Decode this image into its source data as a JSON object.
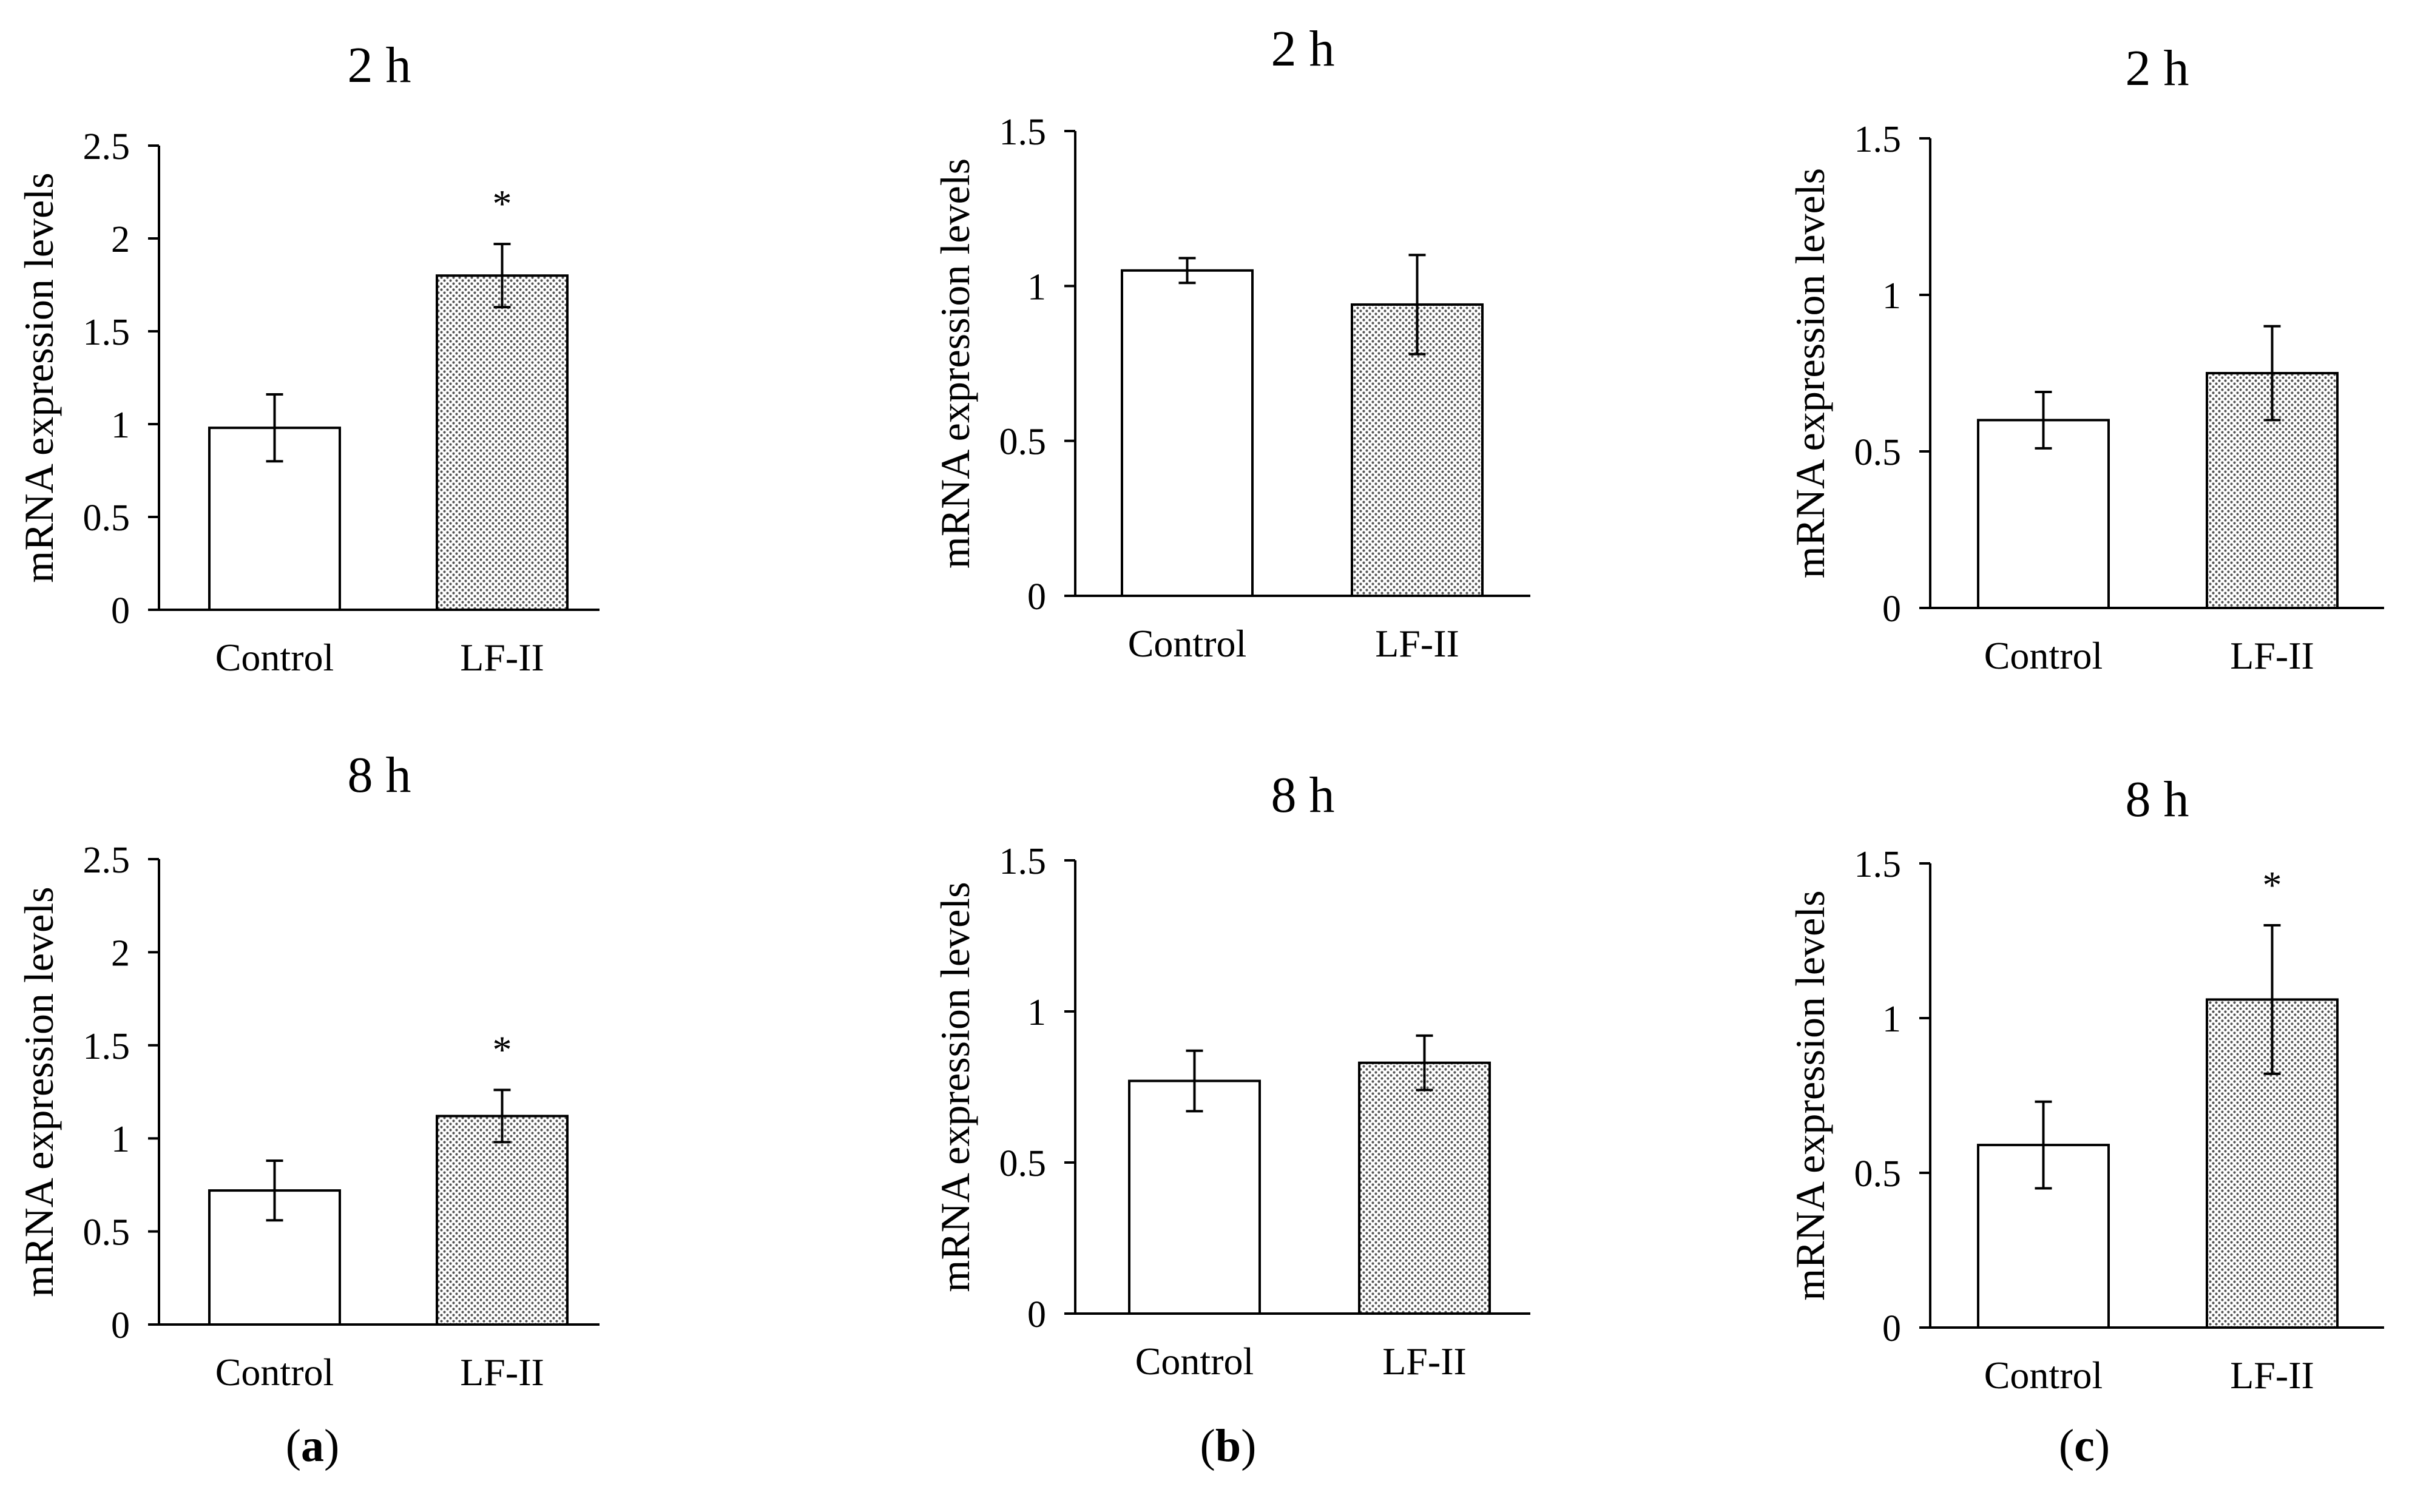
{
  "figure": {
    "panel_labels": [
      {
        "open": "(",
        "letter": "a",
        "close": ")"
      },
      {
        "open": "(",
        "letter": "b",
        "close": ")"
      },
      {
        "open": "(",
        "letter": "c",
        "close": ")"
      }
    ],
    "colors": {
      "axis": "#000000",
      "bar_fill_control": "#ffffff",
      "bar_fill_treatment_dot": "#555555",
      "bar_fill_treatment_bg": "#ffffff"
    }
  },
  "chart_data": [
    {
      "type": "bar",
      "panel": "a",
      "title": "2 h",
      "ylabel": "mRNA expression levels",
      "xlabel": "",
      "categories": [
        "Control",
        "LF-II"
      ],
      "values": [
        0.98,
        1.8
      ],
      "errors": [
        0.18,
        0.17
      ],
      "significance": [
        "",
        "*"
      ],
      "ylim": [
        0,
        2.5
      ],
      "yticks": [
        0,
        0.5,
        1,
        1.5,
        2,
        2.5
      ],
      "ytick_labels": [
        "0",
        "0.5",
        "1",
        "1.5",
        "2",
        "2.5"
      ],
      "grid": false
    },
    {
      "type": "bar",
      "panel": "b",
      "title": "2 h",
      "ylabel": "mRNA expression levels",
      "xlabel": "",
      "categories": [
        "Control",
        "LF-II"
      ],
      "values": [
        1.05,
        0.94
      ],
      "errors": [
        0.04,
        0.16
      ],
      "significance": [
        "",
        ""
      ],
      "ylim": [
        0,
        1.5
      ],
      "yticks": [
        0,
        0.5,
        1,
        1.5
      ],
      "ytick_labels": [
        "0",
        "0.5",
        "1",
        "1.5"
      ],
      "grid": false
    },
    {
      "type": "bar",
      "panel": "c",
      "title": "2 h",
      "ylabel": "mRNA expression levels",
      "xlabel": "",
      "categories": [
        "Control",
        "LF-II"
      ],
      "values": [
        0.6,
        0.75
      ],
      "errors": [
        0.09,
        0.15
      ],
      "significance": [
        "",
        ""
      ],
      "ylim": [
        0,
        1.5
      ],
      "yticks": [
        0,
        0.5,
        1,
        1.5
      ],
      "ytick_labels": [
        "0",
        "0.5",
        "1",
        "1.5"
      ],
      "grid": false
    },
    {
      "type": "bar",
      "panel": "a",
      "title": "8 h",
      "ylabel": "mRNA expression levels",
      "xlabel": "",
      "categories": [
        "Control",
        "LF-II"
      ],
      "values": [
        0.72,
        1.12
      ],
      "errors": [
        0.16,
        0.14
      ],
      "significance": [
        "",
        "*"
      ],
      "ylim": [
        0,
        2.5
      ],
      "yticks": [
        0,
        0.5,
        1,
        1.5,
        2,
        2.5
      ],
      "ytick_labels": [
        "0",
        "0.5",
        "1",
        "1.5",
        "2",
        "2.5"
      ],
      "grid": false
    },
    {
      "type": "bar",
      "panel": "b",
      "title": "8 h",
      "ylabel": "mRNA expression levels",
      "xlabel": "",
      "categories": [
        "Control",
        "LF-II"
      ],
      "values": [
        0.77,
        0.83
      ],
      "errors": [
        0.1,
        0.09
      ],
      "significance": [
        "",
        ""
      ],
      "ylim": [
        0,
        1.5
      ],
      "yticks": [
        0,
        0.5,
        1,
        1.5
      ],
      "ytick_labels": [
        "0",
        "0.5",
        "1",
        "1.5"
      ],
      "grid": false
    },
    {
      "type": "bar",
      "panel": "c",
      "title": "8 h",
      "ylabel": "mRNA expression levels",
      "xlabel": "",
      "categories": [
        "Control",
        "LF-II"
      ],
      "values": [
        0.59,
        1.06
      ],
      "errors": [
        0.14,
        0.24
      ],
      "significance": [
        "",
        "*"
      ],
      "ylim": [
        0,
        1.5
      ],
      "yticks": [
        0,
        0.5,
        1,
        1.5
      ],
      "ytick_labels": [
        "0",
        "0.5",
        "1",
        "1.5"
      ],
      "grid": false
    }
  ]
}
